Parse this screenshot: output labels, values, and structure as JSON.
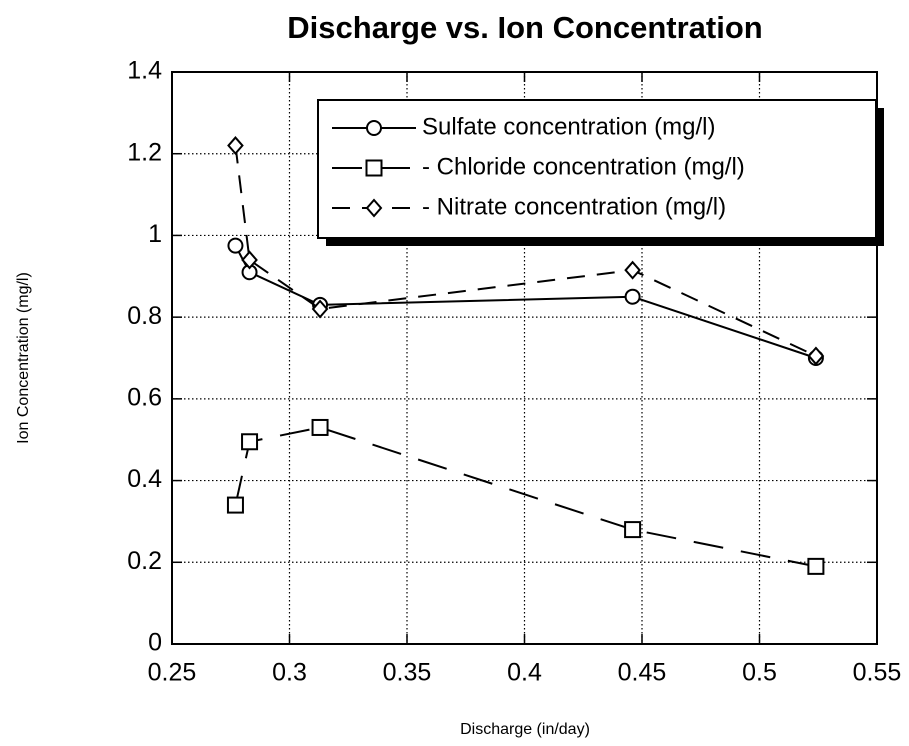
{
  "chart_data": {
    "type": "line",
    "title": "Discharge vs. Ion Concentration",
    "xlabel": "Discharge (in/day)",
    "ylabel": "Ion Concentration (mg/l)",
    "x": [
      0.277,
      0.283,
      0.313,
      0.446,
      0.524
    ],
    "series": [
      {
        "name": "Sulfate concentration (mg/l)",
        "color": "#000000",
        "marker": "circle",
        "dash": "solid",
        "values": [
          0.975,
          0.91,
          0.83,
          0.85,
          0.7
        ]
      },
      {
        "name": "- Chloride concentration (mg/l)",
        "color": "#000000",
        "marker": "square",
        "dash": "long",
        "values": [
          0.34,
          0.495,
          0.53,
          0.28,
          0.19
        ]
      },
      {
        "name": "- Nitrate concentration (mg/l)",
        "color": "#000000",
        "marker": "diamond",
        "dash": "medium",
        "values": [
          1.22,
          0.94,
          0.82,
          0.915,
          0.705
        ]
      }
    ],
    "xlim": [
      0.25,
      0.55
    ],
    "xticks": [
      0.25,
      0.3,
      0.35,
      0.4,
      0.45,
      0.5,
      0.55
    ],
    "ylim": [
      0,
      1.4
    ],
    "yticks": [
      0,
      0.2,
      0.4,
      0.6,
      0.8,
      1,
      1.2,
      1.4
    ],
    "grid": true,
    "legend": "upper right"
  }
}
